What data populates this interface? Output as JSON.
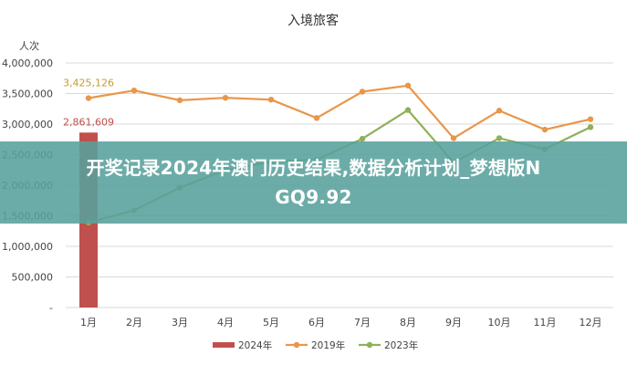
{
  "chart_data": {
    "type": "bar+line",
    "title": "入境旅客",
    "ylabel": "人次",
    "xlabel": "",
    "ylim": [
      0,
      4000000
    ],
    "yticks": [
      0,
      500000,
      1000000,
      1500000,
      2000000,
      2500000,
      3000000,
      3500000,
      4000000
    ],
    "ytick_labels": [
      "-",
      "500,000",
      "1,000,000",
      "1,500,000",
      "2,000,000",
      "2,500,000",
      "3,000,000",
      "3,500,000",
      "4,000,000"
    ],
    "categories": [
      "1月",
      "2月",
      "3月",
      "4月",
      "5月",
      "6月",
      "7月",
      "8月",
      "9月",
      "10月",
      "11月",
      "12月"
    ],
    "grid": true,
    "legend_position": "bottom",
    "series": [
      {
        "name": "2024年",
        "kind": "bar",
        "color": "#c0504d",
        "values": [
          2861609,
          null,
          null,
          null,
          null,
          null,
          null,
          null,
          null,
          null,
          null,
          null
        ],
        "data_label": "2,861,609",
        "label_color": "#c0504d"
      },
      {
        "name": "2019年",
        "kind": "line",
        "color": "#e8964a",
        "values": [
          3425126,
          3550000,
          3390000,
          3430000,
          3400000,
          3100000,
          3530000,
          3630000,
          2770000,
          3220000,
          2910000,
          3080000
        ],
        "data_label": "3,425,126",
        "label_color": "#c79a2e"
      },
      {
        "name": "2023年",
        "kind": "line",
        "color": "#8fb05a",
        "values": [
          1390000,
          1590000,
          1960000,
          2250000,
          2380000,
          2420000,
          2760000,
          3230000,
          2370000,
          2770000,
          2590000,
          2950000
        ]
      }
    ]
  },
  "banner": {
    "line1": "开奖记录2024年澳门历史结果,数据分析计划_梦想版N",
    "line2": "GQ9.92"
  }
}
